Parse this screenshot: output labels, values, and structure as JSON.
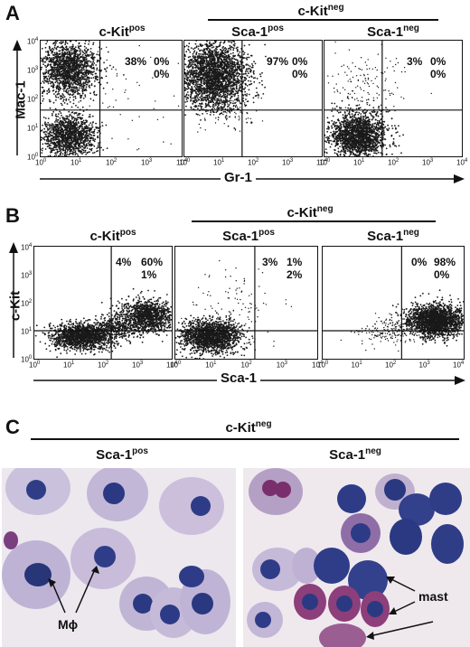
{
  "panelA": {
    "letter": "A",
    "group_label": "c-Kit",
    "group_sup": "neg",
    "plots": [
      {
        "title": "c-Kit",
        "title_sup": "pos",
        "q_ul": "38%",
        "q_ur": "0%",
        "q_lr": "0%"
      },
      {
        "title": "Sca-1",
        "title_sup": "pos",
        "q_ul": "97%",
        "q_ur": "0%",
        "q_lr": "0%"
      },
      {
        "title": "Sca-1",
        "title_sup": "neg",
        "q_ul": "3%",
        "q_ur": "0%",
        "q_lr": "0%"
      }
    ],
    "x_axis_label": "Gr-1",
    "y_axis_label": "Mac-1"
  },
  "panelB": {
    "letter": "B",
    "group_label": "c-Kit",
    "group_sup": "neg",
    "plots": [
      {
        "title": "c-Kit",
        "title_sup": "pos",
        "q_ul": "4%",
        "q_ur": "60%",
        "q_lr": "1%"
      },
      {
        "title": "Sca-1",
        "title_sup": "pos",
        "q_ul": "3%",
        "q_ur": "1%",
        "q_lr": "2%"
      },
      {
        "title": "Sca-1",
        "title_sup": "neg",
        "q_ul": "0%",
        "q_ur": "98%",
        "q_lr": "0%"
      }
    ],
    "x_axis_label": "Sca-1",
    "y_axis_label": "c-Kit"
  },
  "panelC": {
    "letter": "C",
    "group_label": "c-Kit",
    "group_sup": "neg",
    "left_title": "Sca-1",
    "left_sup": "pos",
    "right_title": "Sca-1",
    "right_sup": "neg",
    "left_annotation": "Mϕ",
    "right_annotation": "mast"
  },
  "ticks": {
    "base": "10",
    "exps": [
      "0",
      "1",
      "2",
      "3",
      "4"
    ]
  },
  "colors": {
    "ink": "#111111",
    "cell_cytoplasm": "#c9bedb",
    "nucleus": "#2e3c86",
    "mast_granule": "#8c3f7a"
  }
}
